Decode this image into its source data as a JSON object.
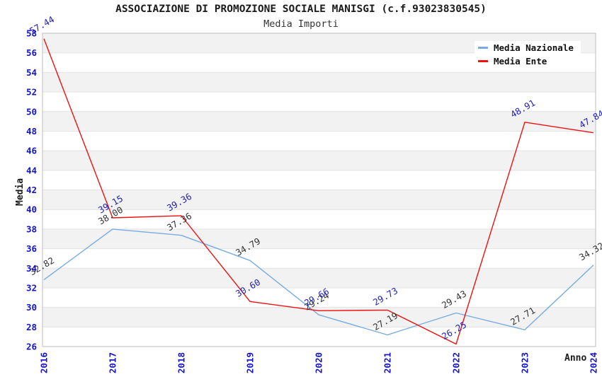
{
  "header": {
    "title": "ASSOCIAZIONE DI PROMOZIONE SOCIALE MANISGI (c.f.93023830545)",
    "subtitle": "Media Importi"
  },
  "chart_data": {
    "type": "line",
    "title": "ASSOCIAZIONE DI PROMOZIONE SOCIALE MANISGI (c.f.93023830545)",
    "subtitle": "Media Importi",
    "xlabel": "Anno",
    "ylabel": "Media",
    "categories": [
      "2016",
      "2017",
      "2018",
      "2019",
      "2020",
      "2021",
      "2022",
      "2023",
      "2024"
    ],
    "series": [
      {
        "name": "Media Nazionale",
        "color": "#76ace1",
        "label_color": "#333333",
        "values": [
          32.82,
          38.0,
          37.36,
          34.79,
          29.24,
          27.19,
          29.43,
          27.71,
          34.32
        ]
      },
      {
        "name": "Media Ente",
        "color": "#ee1111",
        "label_color": "#2222bb",
        "values": [
          57.44,
          39.15,
          39.36,
          30.6,
          29.66,
          29.73,
          26.25,
          48.91,
          47.84
        ]
      }
    ],
    "ylim": [
      26,
      58
    ],
    "ytick_step": 2,
    "yticks": [
      26,
      28,
      30,
      32,
      34,
      36,
      38,
      40,
      42,
      44,
      46,
      48,
      50,
      52,
      54,
      56,
      58,
      58
    ],
    "grid": "horizontal-bands-alternating",
    "legend_position": "top-right",
    "point_labels_decimals": 2
  },
  "theme": {
    "tick_label_color": "#1414cc",
    "band_color": "#f2f2f2",
    "gridline_color": "#e3e3e3",
    "border_color": "#bdbdbd",
    "background": "#ffffff"
  }
}
